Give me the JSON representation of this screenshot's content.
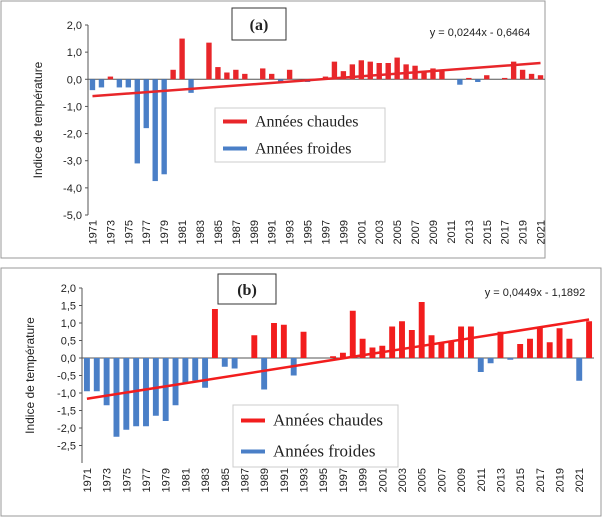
{
  "chart_data": [
    {
      "type": "bar",
      "title": "(a)",
      "annotation": "y = 0,0244x - 0,6464",
      "y_label": "Indice de température",
      "categories": [
        "1971",
        null,
        "1973",
        null,
        "1975",
        null,
        "1977",
        null,
        "1979",
        null,
        "1981",
        null,
        "1983",
        null,
        "1985",
        null,
        "1987",
        null,
        "1989",
        null,
        "1991",
        null,
        "1993",
        null,
        "1995",
        null,
        "1997",
        null,
        "1999",
        null,
        "2001",
        null,
        "2003",
        null,
        "2005",
        null,
        "2007",
        null,
        "2009",
        null,
        "2011",
        null,
        "2013",
        null,
        "2015",
        null,
        "2017",
        null,
        "2019",
        null,
        "2021"
      ],
      "series": [
        {
          "name": "Années chaudes",
          "color": "#e8262a",
          "values": [
            null,
            null,
            0.1,
            null,
            null,
            null,
            null,
            null,
            null,
            0.35,
            1.5,
            null,
            null,
            1.35,
            0.45,
            0.25,
            0.35,
            0.2,
            null,
            0.4,
            0.2,
            null,
            0.35,
            null,
            null,
            null,
            0.1,
            0.65,
            0.3,
            0.55,
            0.7,
            0.65,
            0.6,
            0.6,
            0.8,
            0.55,
            0.5,
            0.3,
            0.4,
            0.3,
            null,
            null,
            0.05,
            null,
            0.15,
            null,
            0.05,
            0.65,
            0.35,
            0.2,
            0.15
          ]
        },
        {
          "name": "Années froides",
          "color": "#4a7fc7",
          "values": [
            -0.4,
            -0.3,
            null,
            -0.3,
            -0.3,
            -3.1,
            -1.8,
            -3.75,
            -3.5,
            null,
            null,
            -0.5,
            null,
            null,
            null,
            null,
            null,
            null,
            null,
            null,
            null,
            -0.1,
            null,
            null,
            -0.1,
            null,
            null,
            null,
            null,
            null,
            null,
            null,
            null,
            null,
            null,
            null,
            null,
            null,
            null,
            null,
            null,
            -0.2,
            null,
            -0.1,
            null,
            null,
            null,
            null,
            null,
            null,
            null
          ]
        }
      ],
      "trendline": {
        "color": "#e8262a",
        "values": [
          -0.622,
          0.598
        ]
      },
      "ylim": [
        -5,
        2
      ],
      "yticks": [
        {
          "value": 2,
          "label": "2,0"
        },
        {
          "value": 1,
          "label": "1,0"
        },
        {
          "value": 0,
          "label": "0,0"
        },
        {
          "value": -1,
          "label": "-1,0"
        },
        {
          "value": -2,
          "label": "-2,0"
        },
        {
          "value": -3,
          "label": "-3,0"
        },
        {
          "value": -4,
          "label": "-4,0"
        },
        {
          "value": -5,
          "label": "-5,0"
        }
      ]
    },
    {
      "type": "bar",
      "title": "(b)",
      "annotation": "y = 0,0449x - 1,1892",
      "y_label": "Indice de température",
      "categories": [
        "1971",
        null,
        "1973",
        null,
        "1975",
        null,
        "1977",
        null,
        "1979",
        null,
        "1981",
        null,
        "1983",
        null,
        "1985",
        null,
        "1987",
        null,
        "1989",
        null,
        "1991",
        null,
        "1993",
        null,
        "1995",
        null,
        "1997",
        null,
        "1999",
        null,
        "2001",
        null,
        "2003",
        null,
        "2005",
        null,
        "2007",
        null,
        "2009",
        null,
        "2011",
        null,
        "2013",
        null,
        "2015",
        null,
        "2017",
        null,
        "2019",
        null,
        "2021",
        null
      ],
      "series": [
        {
          "name": "Années chaudes",
          "color": "#f21d1d",
          "values": [
            null,
            null,
            null,
            null,
            null,
            null,
            null,
            null,
            null,
            null,
            null,
            null,
            null,
            1.4,
            null,
            null,
            null,
            0.65,
            null,
            1.0,
            0.95,
            null,
            0.75,
            null,
            null,
            0.05,
            0.15,
            1.35,
            0.55,
            0.3,
            0.35,
            0.9,
            1.05,
            0.8,
            1.6,
            0.65,
            0.45,
            0.5,
            0.9,
            0.9,
            null,
            null,
            0.75,
            null,
            0.4,
            0.55,
            0.9,
            0.45,
            0.85,
            0.55,
            null,
            1.05
          ]
        },
        {
          "name": "Années froides",
          "color": "#4a7fc7",
          "values": [
            -0.95,
            -0.95,
            -1.35,
            -2.25,
            -2.05,
            -1.95,
            -1.95,
            -1.65,
            -1.8,
            -1.35,
            -0.7,
            -0.65,
            -0.85,
            null,
            -0.25,
            -0.3,
            null,
            null,
            -0.9,
            null,
            null,
            -0.5,
            null,
            null,
            null,
            null,
            null,
            null,
            null,
            null,
            null,
            null,
            null,
            null,
            null,
            null,
            null,
            null,
            null,
            null,
            -0.4,
            -0.15,
            null,
            -0.05,
            null,
            null,
            null,
            null,
            null,
            null,
            -0.65,
            null
          ]
        }
      ],
      "trendline": {
        "color": "#f21d1d",
        "values": [
          -1.165,
          1.1
        ]
      },
      "ylim": [
        -3,
        2
      ],
      "yticks": [
        {
          "value": 2,
          "label": "2,0"
        },
        {
          "value": 1.5,
          "label": "1,5"
        },
        {
          "value": 1,
          "label": "1,0"
        },
        {
          "value": 0.5,
          "label": "0,5"
        },
        {
          "value": 0,
          "label": "0,0"
        },
        {
          "value": -0.5,
          "label": "-0,5"
        },
        {
          "value": -1,
          "label": "-1,0"
        },
        {
          "value": -1.5,
          "label": "-1,5"
        },
        {
          "value": -2,
          "label": "-2,0"
        },
        {
          "value": -2.5,
          "label": "-2,5"
        }
      ]
    }
  ]
}
